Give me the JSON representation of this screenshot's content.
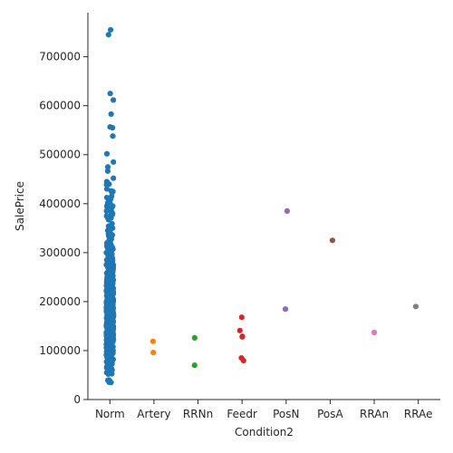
{
  "chart_data": {
    "type": "scatter",
    "xlabel": "Condition2",
    "ylabel": "SalePrice",
    "categories": [
      "Norm",
      "Artery",
      "RRNn",
      "Feedr",
      "PosN",
      "PosA",
      "RRAn",
      "RRAe"
    ],
    "ylim": [
      0,
      790000
    ],
    "yticks": [
      0,
      100000,
      200000,
      300000,
      400000,
      500000,
      600000,
      700000
    ],
    "ytick_labels": [
      "0",
      "100000",
      "200000",
      "300000",
      "400000",
      "500000",
      "600000",
      "700000"
    ],
    "grid": false,
    "legend": "none",
    "colors": [
      "#1f77b4",
      "#ff7f0e",
      "#2ca02c",
      "#d62728",
      "#9467bd",
      "#8c564b",
      "#e377c2",
      "#7f7f7f"
    ],
    "series": [
      {
        "category": "Norm",
        "values": [
          755000,
          745000,
          625000,
          611657,
          582933,
          556581,
          555000,
          538000,
          501837,
          485000,
          475000,
          466500,
          451950,
          445000,
          440000,
          438780,
          430000,
          426000,
          424870,
          423000,
          415298,
          412500,
          410000,
          402861,
          402000,
          395192,
          395000,
          392500,
          392000,
          385000,
          383970,
          381000,
          380000,
          378500,
          377500,
          377426,
          375000,
          372500,
          372402,
          370878,
          369900,
          367294,
          359100,
          354000,
          350000,
          348000,
          345000,
          341000,
          340000,
          339750,
          337500,
          336000,
          335000,
          333168,
          328000,
          325624,
          325300,
          325000,
          320000,
          319900,
          318061,
          317000,
          315750,
          315500,
          315000,
          314813,
          312500,
          311872,
          311500,
          310000,
          309000,
          308500,
          307000,
          306000,
          305900,
          305000,
          303477,
          302000,
          301500,
          301000,
          300000,
          299800,
          298236,
          297000,
          295493,
          295000,
          294323,
          294000,
          293077,
          290000,
          289000,
          287000,
          286000,
          285000,
          284000,
          283463,
          282922,
          281000,
          280000,
          279500,
          278000,
          277500,
          277000,
          275500,
          275000,
          274970,
          274900,
          274725,
          274300,
          274000,
          272000,
          271900,
          271000,
          270000,
          269790,
          269500,
          268000,
          267000,
          266500,
          266000,
          265979,
          265900,
          265000,
          264561,
          264132,
          263435,
          263000,
          262500,
          262280,
          262000,
          261500,
          260400,
          260000,
          259500,
          259000,
          258000,
          257500,
          257000,
          256300,
          256000,
          255900,
          255500,
          255000,
          254900,
          254000,
          253293,
          253000,
          252678,
          252000,
          251000,
          250580,
          250000,
          249700,
          248900,
          248328,
          248000,
          247000,
          246578,
          245700,
          245500,
          245350,
          245000,
          244600,
          244400,
          244000,
          243000,
          242000,
          241500,
          241000,
          240000,
          239900,
          239799,
          239686,
          239500,
          239000,
          238000,
          237500,
          237000,
          236500,
          236000,
          235128,
          235000,
          234000,
          233230,
          233170,
          233000,
          232600,
          232000,
          231500,
          230500,
          230348,
          230000,
          229456,
          229000,
          228950,
          228500,
          228000,
          227875,
          227680,
          227000,
          226700,
          226000,
          225000,
          224900,
          224500,
          224000,
          223500,
          223000,
          222500,
          222000,
          221500,
          221000,
          220000,
          219500,
          219210,
          218000,
          217500,
          217000,
          216837,
          216500,
          216000,
          215200,
          215000,
          214900,
          214500,
          214000,
          213500,
          213490,
          213250,
          213000,
          212900,
          212000,
          211000,
          210000,
          209500,
          208900,
          208500,
          208300,
          208000,
          207500,
          207000,
          206900,
          206300,
          206000,
          205950,
          205000,
          204900,
          204750,
          204000,
          203000,
          202900,
          202665,
          202500,
          202000,
          201800,
          201000,
          200624,
          200500,
          200141,
          200100,
          200000,
          199900,
          199500,
          199000,
          198900,
          198500,
          197900,
          197500,
          197000,
          196500,
          196000,
          195400,
          195000,
          194700,
          194500,
          194201,
          194000,
          193879,
          193500,
          193000,
          192500,
          192140,
          192000,
          191000,
          190000,
          189950,
          189000,
          188700,
          188500,
          188000,
          187750,
          187500,
          187100,
          187000,
          186700,
          186500,
          186000,
          185900,
          185850,
          185750,
          185500,
          185000,
          184900,
          184750,
          184100,
          184000,
          183900,
          183500,
          183200,
          183000,
          182900,
          182500,
          182000,
          181900,
          181500,
          181134,
          181000,
          180500,
          180000,
          179900,
          179665,
          179600,
          179540,
          179400,
          179200,
          179000,
          178900,
          178740,
          178400,
          178000,
          177500,
          177000,
          176500,
          176485,
          176432,
          176000,
          175900,
          175500,
          175000,
          174900,
          174500,
          174000,
          173900,
          173733,
          173500,
          173000,
          172785,
          172500,
          172400,
          172000,
          171900,
          171750,
          171500,
          171000,
          170000,
          169990,
          169900,
          169500,
          169000,
          168500,
          168000,
          167900,
          167500,
          167240,
          167000,
          166000,
          165600,
          165500,
          165400,
          165150,
          165000,
          164990,
          164900,
          164700,
          164500,
          164000,
          163990,
          163900,
          163500,
          163000,
          162900,
          162500,
          162000,
          161750,
          161500,
          161000,
          160200,
          160000,
          159895,
          159500,
          159434,
          159000,
          158900,
          158500,
          158000,
          157900,
          157500,
          157000,
          156932,
          156500,
          156000,
          155900,
          155835,
          155000,
          154900,
          154500,
          154300,
          154000,
          153900,
          153575,
          153500,
          153337,
          153000,
          152000,
          151500,
          151400,
          151000,
          150900,
          150750,
          150500,
          150000,
          149900,
          149700,
          149500,
          149350,
          149300,
          149000,
          148800,
          148500,
          148000,
          147500,
          147400,
          147000,
          146800,
          146500,
          146000,
          145900,
          145500,
          145250,
          145000,
          144900,
          144500,
          144152,
          144000,
          143900,
          143750,
          143500,
          143250,
          143000,
          142953,
          142600,
          142500,
          142125,
          142000,
          141500,
          141000,
          140200,
          140000,
          139950,
          139900,
          139600,
          139500,
          139400,
          139000,
          138887,
          138800,
          138500,
          138000,
          137900,
          137500,
          137450,
          137000,
          136905,
          136900,
          136500,
          136000,
          135960,
          135900,
          135750,
          135500,
          135000,
          134900,
          134800,
          134500,
          134450,
          134432,
          134000,
          133900,
          133700,
          133500,
          133000,
          132500,
          132250,
          132000,
          131500,
          131400,
          131000,
          130500,
          130250,
          130000,
          129900,
          129500,
          129000,
          128950,
          128900,
          128500,
          128200,
          128000,
          127500,
          127000,
          126500,
          126175,
          126000,
          125500,
          125000,
          124900,
          124500,
          124000,
          123600,
          123500,
          123000,
          122900,
          122500,
          122000,
          121600,
          121500,
          121000,
          120500,
          120000,
          119900,
          119750,
          119500,
          119200,
          119000,
          118964,
          118858,
          118500,
          118400,
          118000,
          117500,
          117000,
          116900,
          116500,
          116050,
          116000,
          115000,
          114504,
          114500,
          114000,
          113722,
          113000,
          112500,
          112000,
          111250,
          111000,
          110500,
          110000,
          109900,
          109500,
          109008,
          109000,
          108959,
          108500,
          108480,
          108000,
          107900,
          107500,
          107400,
          107000,
          106500,
          106250,
          106000,
          105900,
          105500,
          105000,
          104900,
          104000,
          103600,
          103200,
          103000,
          102776,
          102000,
          101800,
          101000,
          100000,
          99900,
          99600,
          99500,
          98600,
          98500,
          98300,
          98000,
          97500,
          97000,
          96500,
          96000,
          95000,
          94750,
          94500,
          94000,
          93500,
          93000,
          92900,
          92000,
          91500,
          91300,
          91000,
          90500,
          90350,
          90000,
          89500,
          89471,
          89000,
          88750,
          88000,
          87500,
          87000,
          86000,
          85500,
          85400,
          85000,
          84900,
          84500,
          84000,
          83500,
          83000,
          82500,
          82000,
          81000,
          80500,
          80000,
          79900,
          79500,
          79000,
          78000,
          77500,
          77000,
          76500,
          76000,
          75500,
          75000,
          73000,
          72500,
          71500,
          71000,
          68500,
          68400,
          67000,
          66500,
          64500,
          64000,
          62383,
          61000,
          60000,
          58500,
          57000,
          55993,
          55000,
          52500,
          52000,
          40000,
          39300,
          37900,
          35311,
          34900
        ]
      },
      {
        "category": "Artery",
        "values": [
          119000,
          96000
        ]
      },
      {
        "category": "RRNn",
        "values": [
          126000,
          70000
        ]
      },
      {
        "category": "Feedr",
        "values": [
          168000,
          141000,
          129000,
          128000,
          85000,
          79500
        ]
      },
      {
        "category": "PosN",
        "values": [
          385000,
          184750
        ]
      },
      {
        "category": "PosA",
        "values": [
          325000
        ]
      },
      {
        "category": "RRAn",
        "values": [
          136905
        ]
      },
      {
        "category": "RRAe",
        "values": [
          190000
        ]
      }
    ]
  }
}
